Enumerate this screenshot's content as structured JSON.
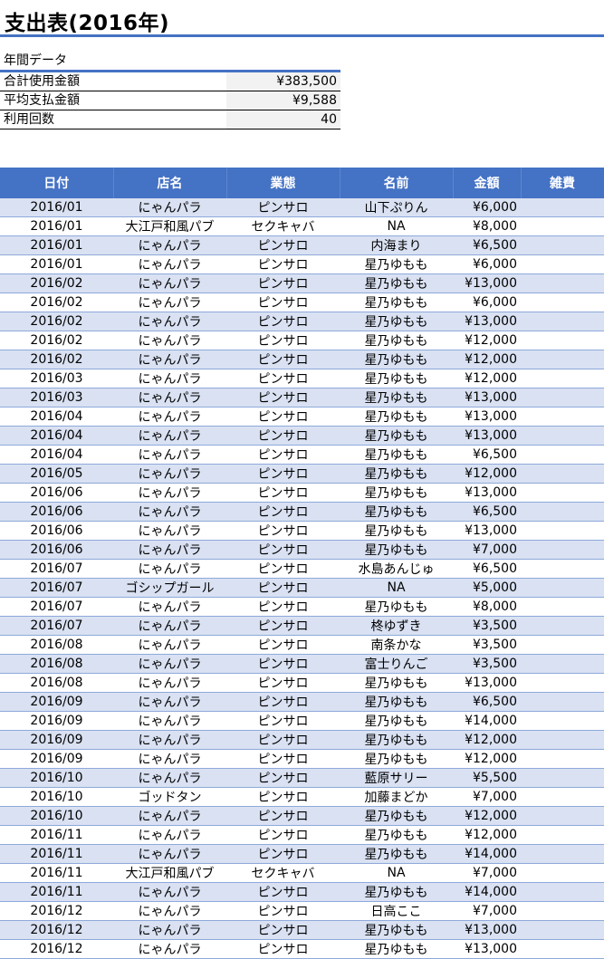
{
  "title": "支出表(2016年)",
  "summary": {
    "heading": "年間データ",
    "rows": [
      {
        "label": "合計使用金額",
        "value": "¥383,500"
      },
      {
        "label": "平均支払金額",
        "value": "¥9,588"
      },
      {
        "label": "利用回数",
        "value": "40"
      }
    ]
  },
  "table": {
    "headers": [
      "日付",
      "店名",
      "業態",
      "名前",
      "金額",
      "雑費"
    ],
    "rows": [
      [
        "2016/01",
        "にゃんパラ",
        "ピンサロ",
        "山下ぷりん",
        "¥6,000",
        ""
      ],
      [
        "2016/01",
        "大江戸和風パブ",
        "セクキャバ",
        "NA",
        "¥8,000",
        ""
      ],
      [
        "2016/01",
        "にゃんパラ",
        "ピンサロ",
        "内海まり",
        "¥6,500",
        ""
      ],
      [
        "2016/01",
        "にゃんパラ",
        "ピンサロ",
        "星乃ゆもも",
        "¥6,000",
        ""
      ],
      [
        "2016/02",
        "にゃんパラ",
        "ピンサロ",
        "星乃ゆもも",
        "¥13,000",
        ""
      ],
      [
        "2016/02",
        "にゃんパラ",
        "ピンサロ",
        "星乃ゆもも",
        "¥6,000",
        ""
      ],
      [
        "2016/02",
        "にゃんパラ",
        "ピンサロ",
        "星乃ゆもも",
        "¥13,000",
        ""
      ],
      [
        "2016/02",
        "にゃんパラ",
        "ピンサロ",
        "星乃ゆもも",
        "¥12,000",
        ""
      ],
      [
        "2016/02",
        "にゃんパラ",
        "ピンサロ",
        "星乃ゆもも",
        "¥12,000",
        ""
      ],
      [
        "2016/03",
        "にゃんパラ",
        "ピンサロ",
        "星乃ゆもも",
        "¥12,000",
        ""
      ],
      [
        "2016/03",
        "にゃんパラ",
        "ピンサロ",
        "星乃ゆもも",
        "¥13,000",
        ""
      ],
      [
        "2016/04",
        "にゃんパラ",
        "ピンサロ",
        "星乃ゆもも",
        "¥13,000",
        ""
      ],
      [
        "2016/04",
        "にゃんパラ",
        "ピンサロ",
        "星乃ゆもも",
        "¥13,000",
        ""
      ],
      [
        "2016/04",
        "にゃんパラ",
        "ピンサロ",
        "星乃ゆもも",
        "¥6,500",
        ""
      ],
      [
        "2016/05",
        "にゃんパラ",
        "ピンサロ",
        "星乃ゆもも",
        "¥12,000",
        ""
      ],
      [
        "2016/06",
        "にゃんパラ",
        "ピンサロ",
        "星乃ゆもも",
        "¥13,000",
        ""
      ],
      [
        "2016/06",
        "にゃんパラ",
        "ピンサロ",
        "星乃ゆもも",
        "¥6,500",
        ""
      ],
      [
        "2016/06",
        "にゃんパラ",
        "ピンサロ",
        "星乃ゆもも",
        "¥13,000",
        ""
      ],
      [
        "2016/06",
        "にゃんパラ",
        "ピンサロ",
        "星乃ゆもも",
        "¥7,000",
        ""
      ],
      [
        "2016/07",
        "にゃんパラ",
        "ピンサロ",
        "水島あんじゅ",
        "¥6,500",
        ""
      ],
      [
        "2016/07",
        "ゴシップガール",
        "ピンサロ",
        "NA",
        "¥5,000",
        ""
      ],
      [
        "2016/07",
        "にゃんパラ",
        "ピンサロ",
        "星乃ゆもも",
        "¥8,000",
        ""
      ],
      [
        "2016/07",
        "にゃんパラ",
        "ピンサロ",
        "柊ゆずき",
        "¥3,500",
        ""
      ],
      [
        "2016/08",
        "にゃんパラ",
        "ピンサロ",
        "南条かな",
        "¥3,500",
        ""
      ],
      [
        "2016/08",
        "にゃんパラ",
        "ピンサロ",
        "富士りんご",
        "¥3,500",
        ""
      ],
      [
        "2016/08",
        "にゃんパラ",
        "ピンサロ",
        "星乃ゆもも",
        "¥13,000",
        ""
      ],
      [
        "2016/09",
        "にゃんパラ",
        "ピンサロ",
        "星乃ゆもも",
        "¥6,500",
        ""
      ],
      [
        "2016/09",
        "にゃんパラ",
        "ピンサロ",
        "星乃ゆもも",
        "¥14,000",
        ""
      ],
      [
        "2016/09",
        "にゃんパラ",
        "ピンサロ",
        "星乃ゆもも",
        "¥12,000",
        ""
      ],
      [
        "2016/09",
        "にゃんパラ",
        "ピンサロ",
        "星乃ゆもも",
        "¥12,000",
        ""
      ],
      [
        "2016/10",
        "にゃんパラ",
        "ピンサロ",
        "藍原サリー",
        "¥5,500",
        ""
      ],
      [
        "2016/10",
        "ゴッドタン",
        "ピンサロ",
        "加藤まどか",
        "¥7,000",
        ""
      ],
      [
        "2016/10",
        "にゃんパラ",
        "ピンサロ",
        "星乃ゆもも",
        "¥12,000",
        ""
      ],
      [
        "2016/11",
        "にゃんパラ",
        "ピンサロ",
        "星乃ゆもも",
        "¥12,000",
        ""
      ],
      [
        "2016/11",
        "にゃんパラ",
        "ピンサロ",
        "星乃ゆもも",
        "¥14,000",
        ""
      ],
      [
        "2016/11",
        "大江戸和風パブ",
        "セクキャバ",
        "NA",
        "¥7,000",
        ""
      ],
      [
        "2016/11",
        "にゃんパラ",
        "ピンサロ",
        "星乃ゆもも",
        "¥14,000",
        ""
      ],
      [
        "2016/12",
        "にゃんパラ",
        "ピンサロ",
        "日高ここ",
        "¥7,000",
        ""
      ],
      [
        "2016/12",
        "にゃんパラ",
        "ピンサロ",
        "星乃ゆもも",
        "¥13,000",
        ""
      ],
      [
        "2016/12",
        "にゃんパラ",
        "ピンサロ",
        "星乃ゆもも",
        "¥13,000",
        ""
      ]
    ]
  },
  "colors": {
    "accent": "#4472C4",
    "band": "#D9E1F2",
    "summary_value_bg": "#F2F2F2"
  }
}
